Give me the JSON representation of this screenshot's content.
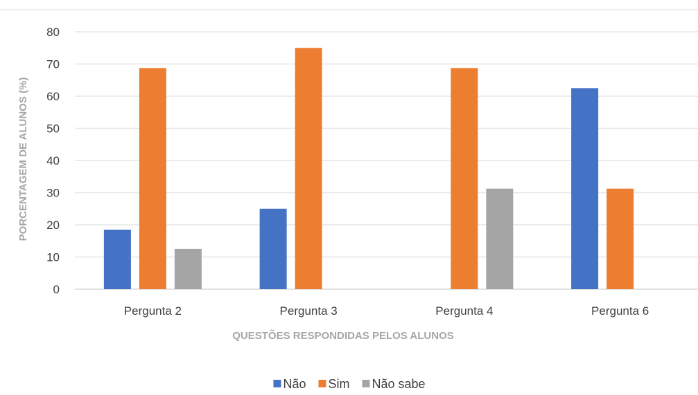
{
  "chart_data": {
    "type": "bar",
    "title": "",
    "xlabel": "QUESTÕES RESPONDIDAS PELOS ALUNOS",
    "ylabel": "PORCENTAGEM DE ALUNOS (%)",
    "ylim": [
      0,
      80
    ],
    "yticks": [
      0,
      10,
      20,
      30,
      40,
      50,
      60,
      70,
      80
    ],
    "grid": true,
    "legend_position": "bottom",
    "categories": [
      "Pergunta 2",
      "Pergunta 3",
      "Pergunta 4",
      "Pergunta 6"
    ],
    "series": [
      {
        "name": "Não",
        "color": "#4472c4",
        "values": [
          18.5,
          25,
          0,
          62.5
        ]
      },
      {
        "name": "Sim",
        "color": "#ed7d31",
        "values": [
          68.75,
          75,
          68.75,
          31.25
        ]
      },
      {
        "name": "Não sabe",
        "color": "#a5a5a5",
        "values": [
          12.5,
          0,
          31.25,
          0
        ]
      }
    ]
  }
}
